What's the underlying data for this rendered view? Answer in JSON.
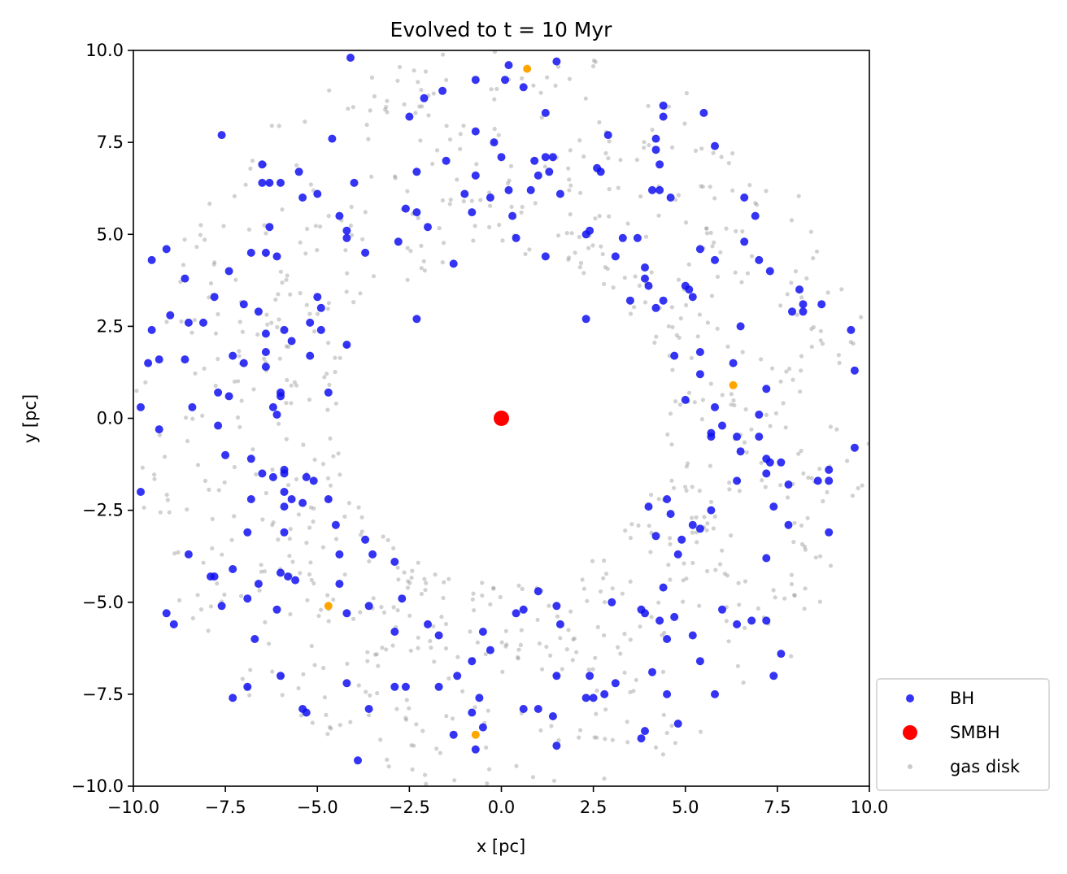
{
  "chart_data": {
    "type": "scatter",
    "title": "Evolved to t = 10 Myr",
    "xlabel": "x [pc]",
    "ylabel": "y [pc]",
    "xlim": [
      -10,
      10
    ],
    "ylim": [
      -10,
      10
    ],
    "xticks": [
      -10.0,
      -7.5,
      -5.0,
      -2.5,
      0.0,
      2.5,
      5.0,
      7.5,
      10.0
    ],
    "yticks": [
      -10.0,
      -7.5,
      -5.0,
      -2.5,
      0.0,
      2.5,
      5.0,
      7.5,
      10.0
    ],
    "xtick_labels": [
      "−10.0",
      "−7.5",
      "−5.0",
      "−2.5",
      "0.0",
      "2.5",
      "5.0",
      "7.5",
      "10.0"
    ],
    "ytick_labels": [
      "−10.0",
      "−7.5",
      "−5.0",
      "−2.5",
      "0.0",
      "2.5",
      "5.0",
      "7.5",
      "10.0"
    ],
    "grid": false,
    "legend_position": "outside-lower-right",
    "series": [
      {
        "name": "BH",
        "color": "#1010f0",
        "points": [
          [
            -4.1,
            9.8
          ],
          [
            0.2,
            9.6
          ],
          [
            1.5,
            9.7
          ],
          [
            0.1,
            9.2
          ],
          [
            -0.7,
            9.2
          ],
          [
            0.6,
            9.0
          ],
          [
            -2.1,
            8.7
          ],
          [
            -2.5,
            8.2
          ],
          [
            -1.6,
            8.9
          ],
          [
            1.2,
            8.3
          ],
          [
            4.4,
            8.5
          ],
          [
            4.4,
            8.2
          ],
          [
            5.5,
            8.3
          ],
          [
            -7.6,
            7.7
          ],
          [
            -4.6,
            7.6
          ],
          [
            -0.7,
            7.8
          ],
          [
            -0.2,
            7.5
          ],
          [
            0,
            7.1
          ],
          [
            0.9,
            7.0
          ],
          [
            1.2,
            7.1
          ],
          [
            1.4,
            7.1
          ],
          [
            2.9,
            7.7
          ],
          [
            4.2,
            7.6
          ],
          [
            5.8,
            7.4
          ],
          [
            4.2,
            7.3
          ],
          [
            -6.5,
            6.9
          ],
          [
            -5.5,
            6.7
          ],
          [
            -4.0,
            6.4
          ],
          [
            -2.3,
            6.7
          ],
          [
            -1.5,
            7.0
          ],
          [
            -0.7,
            6.6
          ],
          [
            1.0,
            6.6
          ],
          [
            1.3,
            6.7
          ],
          [
            2.6,
            6.8
          ],
          [
            2.7,
            6.7
          ],
          [
            4.3,
            6.9
          ],
          [
            -6.5,
            6.4
          ],
          [
            -6.3,
            6.4
          ],
          [
            -6.0,
            6.4
          ],
          [
            -5.4,
            6.0
          ],
          [
            -5.0,
            6.1
          ],
          [
            -4.4,
            5.5
          ],
          [
            -2.6,
            5.7
          ],
          [
            -2.3,
            5.6
          ],
          [
            -1.0,
            6.1
          ],
          [
            -0.3,
            6.0
          ],
          [
            0.2,
            6.2
          ],
          [
            0.8,
            6.2
          ],
          [
            1.6,
            6.1
          ],
          [
            4.1,
            6.2
          ],
          [
            4.3,
            6.2
          ],
          [
            4.6,
            6.0
          ],
          [
            6.6,
            6.0
          ],
          [
            6.9,
            5.5
          ],
          [
            -6.3,
            5.2
          ],
          [
            -4.2,
            5.1
          ],
          [
            -4.2,
            4.9
          ],
          [
            -2.8,
            4.8
          ],
          [
            -2.0,
            5.2
          ],
          [
            -0.8,
            5.6
          ],
          [
            0.3,
            5.5
          ],
          [
            0.4,
            4.9
          ],
          [
            2.3,
            5.0
          ],
          [
            2.4,
            5.1
          ],
          [
            3.3,
            4.9
          ],
          [
            3.7,
            4.9
          ],
          [
            5.4,
            4.6
          ],
          [
            6.6,
            4.8
          ],
          [
            -9.5,
            4.3
          ],
          [
            -9.1,
            4.6
          ],
          [
            -7.4,
            4.0
          ],
          [
            -6.8,
            4.5
          ],
          [
            -6.4,
            4.5
          ],
          [
            -6.1,
            4.4
          ],
          [
            -3.7,
            4.5
          ],
          [
            -1.3,
            4.2
          ],
          [
            1.2,
            4.4
          ],
          [
            3.1,
            4.4
          ],
          [
            5.8,
            4.3
          ],
          [
            7.0,
            4.3
          ],
          [
            7.3,
            4.0
          ],
          [
            -8.6,
            3.8
          ],
          [
            -7.8,
            3.3
          ],
          [
            -7.0,
            3.1
          ],
          [
            -6.6,
            2.9
          ],
          [
            -5.0,
            3.3
          ],
          [
            -4.9,
            3.0
          ],
          [
            -9.0,
            2.8
          ],
          [
            -9.5,
            2.4
          ],
          [
            -8.5,
            2.6
          ],
          [
            -8.1,
            2.6
          ],
          [
            -6.4,
            2.3
          ],
          [
            -5.9,
            2.4
          ],
          [
            -5.7,
            2.1
          ],
          [
            -5.2,
            2.6
          ],
          [
            -4.9,
            2.4
          ],
          [
            -2.3,
            2.7
          ],
          [
            3.5,
            3.2
          ],
          [
            3.9,
            4.1
          ],
          [
            3.9,
            3.8
          ],
          [
            4.0,
            3.6
          ],
          [
            4.2,
            3.0
          ],
          [
            4.4,
            3.2
          ],
          [
            5.0,
            3.6
          ],
          [
            5.1,
            3.5
          ],
          [
            5.2,
            3.3
          ],
          [
            8.1,
            3.5
          ],
          [
            7.9,
            2.9
          ],
          [
            8.2,
            3.1
          ],
          [
            8.2,
            2.9
          ],
          [
            8.7,
            3.1
          ],
          [
            9.5,
            2.4
          ],
          [
            -9.6,
            1.5
          ],
          [
            -9.3,
            1.6
          ],
          [
            -8.6,
            1.6
          ],
          [
            -7.3,
            1.7
          ],
          [
            -7.0,
            1.5
          ],
          [
            -6.4,
            1.8
          ],
          [
            -6.4,
            1.4
          ],
          [
            -5.2,
            1.7
          ],
          [
            -4.2,
            2.0
          ],
          [
            2.3,
            2.7
          ],
          [
            4.7,
            1.7
          ],
          [
            5.4,
            1.2
          ],
          [
            5.4,
            1.8
          ],
          [
            6.3,
            1.5
          ],
          [
            6.5,
            2.5
          ],
          [
            9.6,
            1.3
          ],
          [
            -9.8,
            0.3
          ],
          [
            -9.3,
            -0.3
          ],
          [
            -8.4,
            0.3
          ],
          [
            -7.7,
            0.7
          ],
          [
            -7.4,
            0.6
          ],
          [
            -6.2,
            0.3
          ],
          [
            -6.1,
            0.1
          ],
          [
            -6.0,
            0.7
          ],
          [
            -6.0,
            0.6
          ],
          [
            -4.7,
            0.7
          ],
          [
            5.0,
            0.5
          ],
          [
            5.8,
            0.3
          ],
          [
            5.7,
            -0.4
          ],
          [
            5.7,
            -0.5
          ],
          [
            6.0,
            -0.2
          ],
          [
            6.4,
            -0.5
          ],
          [
            7.0,
            -0.5
          ],
          [
            7.0,
            0.1
          ],
          [
            7.2,
            0.8
          ],
          [
            -7.7,
            -0.2
          ],
          [
            -7.5,
            -1.0
          ],
          [
            -6.8,
            -1.1
          ],
          [
            -6.5,
            -1.5
          ],
          [
            -6.2,
            -1.6
          ],
          [
            -5.9,
            -1.4
          ],
          [
            -5.9,
            -1.5
          ],
          [
            -5.3,
            -1.6
          ],
          [
            -5.1,
            -1.7
          ],
          [
            6.5,
            -0.9
          ],
          [
            7.2,
            -1.1
          ],
          [
            7.3,
            -1.2
          ],
          [
            7.6,
            -1.2
          ],
          [
            7.2,
            -1.5
          ],
          [
            8.6,
            -1.7
          ],
          [
            8.9,
            -1.4
          ],
          [
            8.9,
            -1.7
          ],
          [
            9.6,
            -0.8
          ],
          [
            -9.8,
            -2.0
          ],
          [
            -6.8,
            -2.2
          ],
          [
            -5.9,
            -2.0
          ],
          [
            -5.9,
            -2.4
          ],
          [
            -5.7,
            -2.2
          ],
          [
            -5.4,
            -2.3
          ],
          [
            -4.7,
            -2.2
          ],
          [
            -4.5,
            -2.9
          ],
          [
            -5.9,
            -3.1
          ],
          [
            -3.7,
            -3.3
          ],
          [
            4.0,
            -2.4
          ],
          [
            4.5,
            -2.2
          ],
          [
            4.6,
            -2.6
          ],
          [
            5.2,
            -2.9
          ],
          [
            5.7,
            -2.5
          ],
          [
            6.4,
            -1.7
          ],
          [
            7.4,
            -2.4
          ],
          [
            7.8,
            -1.8
          ],
          [
            7.8,
            -2.9
          ],
          [
            8.9,
            -3.1
          ],
          [
            -8.5,
            -3.7
          ],
          [
            -7.9,
            -4.3
          ],
          [
            -7.8,
            -4.3
          ],
          [
            -7.3,
            -4.1
          ],
          [
            -6.9,
            -3.1
          ],
          [
            -6.6,
            -4.5
          ],
          [
            -6.0,
            -4.2
          ],
          [
            -5.8,
            -4.3
          ],
          [
            -5.6,
            -4.4
          ],
          [
            -4.4,
            -3.7
          ],
          [
            -3.5,
            -3.7
          ],
          [
            -2.9,
            -3.9
          ],
          [
            4.2,
            -3.2
          ],
          [
            4.8,
            -3.7
          ],
          [
            4.9,
            -3.3
          ],
          [
            5.4,
            -3.0
          ],
          [
            4.4,
            -4.6
          ],
          [
            7.2,
            -3.8
          ],
          [
            -9.1,
            -5.3
          ],
          [
            -8.9,
            -5.6
          ],
          [
            -7.6,
            -5.1
          ],
          [
            -6.9,
            -4.9
          ],
          [
            -6.1,
            -5.2
          ],
          [
            -4.4,
            -4.5
          ],
          [
            -4.2,
            -5.3
          ],
          [
            -3.6,
            -5.1
          ],
          [
            -2.7,
            -4.9
          ],
          [
            -2.0,
            -5.6
          ],
          [
            -1.7,
            -5.9
          ],
          [
            -0.5,
            -5.8
          ],
          [
            -0.3,
            -6.3
          ],
          [
            0.4,
            -5.3
          ],
          [
            0.6,
            -5.2
          ],
          [
            1.0,
            -4.7
          ],
          [
            1.5,
            -5.1
          ],
          [
            1.6,
            -5.6
          ],
          [
            3.0,
            -5.0
          ],
          [
            3.8,
            -5.2
          ],
          [
            3.9,
            -5.3
          ],
          [
            4.3,
            -5.5
          ],
          [
            4.7,
            -5.4
          ],
          [
            5.2,
            -5.9
          ],
          [
            6.0,
            -5.2
          ],
          [
            6.4,
            -5.6
          ],
          [
            6.8,
            -5.5
          ],
          [
            7.2,
            -5.5
          ],
          [
            -6.7,
            -6.0
          ],
          [
            -7.3,
            -7.6
          ],
          [
            -6.9,
            -7.3
          ],
          [
            -6.0,
            -7.0
          ],
          [
            -5.4,
            -7.9
          ],
          [
            -5.3,
            -8.0
          ],
          [
            -4.2,
            -7.2
          ],
          [
            -3.6,
            -7.9
          ],
          [
            -3.9,
            -9.3
          ],
          [
            -2.9,
            -5.8
          ],
          [
            -2.9,
            -7.3
          ],
          [
            -2.6,
            -7.3
          ],
          [
            -1.7,
            -7.3
          ],
          [
            -1.3,
            -8.6
          ],
          [
            -1.2,
            -7.0
          ],
          [
            -0.8,
            -6.6
          ],
          [
            -0.8,
            -8.0
          ],
          [
            -0.6,
            -7.6
          ],
          [
            -0.7,
            -9.0
          ],
          [
            -0.5,
            -8.4
          ],
          [
            0.6,
            -7.9
          ],
          [
            1.0,
            -7.9
          ],
          [
            1.4,
            -8.1
          ],
          [
            1.5,
            -7.0
          ],
          [
            1.5,
            -8.9
          ],
          [
            2.3,
            -7.6
          ],
          [
            2.5,
            -7.6
          ],
          [
            2.4,
            -7.0
          ],
          [
            2.8,
            -7.5
          ],
          [
            3.1,
            -7.2
          ],
          [
            3.8,
            -8.7
          ],
          [
            3.9,
            -8.5
          ],
          [
            4.1,
            -6.9
          ],
          [
            4.5,
            -6.0
          ],
          [
            4.5,
            -7.5
          ],
          [
            4.8,
            -8.3
          ],
          [
            5.4,
            -6.6
          ],
          [
            5.8,
            -7.5
          ],
          [
            7.4,
            -7.0
          ],
          [
            7.6,
            -6.4
          ]
        ]
      },
      {
        "name": "",
        "color": "#ffa500",
        "points": [
          [
            0.7,
            9.5
          ],
          [
            6.3,
            0.9
          ],
          [
            -4.7,
            -5.1
          ],
          [
            -0.7,
            -8.6
          ]
        ]
      },
      {
        "name": "SMBH",
        "color": "#ff0000",
        "points": [
          [
            0,
            0
          ]
        ]
      },
      {
        "name": "gas disk",
        "color": "#8c8c8c",
        "inner_radius": 4.5,
        "outer_radius": 10.2,
        "count": 820
      }
    ]
  }
}
